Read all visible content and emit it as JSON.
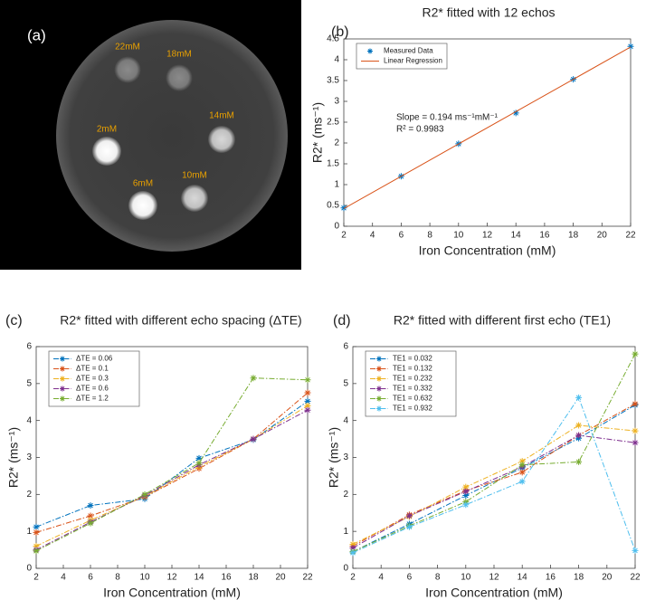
{
  "image_panel": {
    "panel_label": "(a)",
    "spot_labels": [
      "22mM",
      "18mM",
      "14mM",
      "2mM",
      "6mM",
      "10mM"
    ]
  },
  "chart_data": [
    {
      "type": "line",
      "panel_label": "(b)",
      "title": "R2* fitted with 12 echos",
      "x_label": "Iron Concentration (mM)",
      "y_label": "R2* (ms⁻¹)",
      "annotations": [
        "Slope = 0.194 ms⁻¹mM⁻¹",
        "R² = 0.9983"
      ],
      "x": [
        2,
        6,
        10,
        14,
        18,
        22
      ],
      "series": [
        {
          "name": "Measured Data",
          "color": "#0072bd",
          "mode": "markers",
          "values": [
            0.44,
            1.2,
            1.98,
            2.72,
            3.53,
            4.32
          ]
        },
        {
          "name": "Linear Regression",
          "color": "#d95319",
          "mode": "line",
          "values": [
            0.425,
            1.201,
            1.977,
            2.753,
            3.529,
            4.305
          ]
        }
      ],
      "xlim": [
        2,
        22
      ],
      "xticks": [
        2,
        4,
        6,
        8,
        10,
        12,
        14,
        16,
        18,
        20,
        22
      ],
      "ylim": [
        0,
        4.5
      ],
      "yticks": [
        0,
        0.5,
        1,
        1.5,
        2,
        2.5,
        3,
        3.5,
        4,
        4.5
      ],
      "legend": "upper left"
    },
    {
      "type": "line",
      "panel_label": "(c)",
      "title": "R2* fitted with different echo spacing (ΔTE)",
      "x_label": "Iron Concentration (mM)",
      "y_label": "R2* (ms⁻¹)",
      "x": [
        2,
        6,
        10,
        14,
        18,
        22
      ],
      "series": [
        {
          "name": "ΔTE = 0.06",
          "color": "#0072bd",
          "mode": "dashdot-markers",
          "values": [
            1.12,
            1.7,
            1.88,
            2.98,
            3.48,
            4.52
          ]
        },
        {
          "name": "ΔTE = 0.1",
          "color": "#d95319",
          "mode": "dashdot-markers",
          "values": [
            0.97,
            1.42,
            1.93,
            2.7,
            3.5,
            4.75
          ]
        },
        {
          "name": "ΔTE = 0.3",
          "color": "#edb120",
          "mode": "dashdot-markers",
          "values": [
            0.6,
            1.3,
            1.95,
            2.75,
            3.5,
            4.4
          ]
        },
        {
          "name": "ΔTE = 0.6",
          "color": "#7e2f8e",
          "mode": "dashdot-markers",
          "values": [
            0.5,
            1.25,
            1.97,
            2.8,
            3.5,
            4.28
          ]
        },
        {
          "name": "ΔTE = 1.2",
          "color": "#77ac30",
          "mode": "dashdot-markers",
          "values": [
            0.47,
            1.22,
            2.0,
            2.85,
            5.15,
            5.1
          ]
        }
      ],
      "xlim": [
        2,
        22
      ],
      "xticks": [
        2,
        4,
        6,
        8,
        10,
        12,
        14,
        16,
        18,
        20,
        22
      ],
      "ylim": [
        0,
        6
      ],
      "yticks": [
        0,
        1,
        2,
        3,
        4,
        5,
        6
      ],
      "legend": "upper left"
    },
    {
      "type": "line",
      "panel_label": "(d)",
      "title": "R2* fitted with different first echo (TE1)",
      "x_label": "Iron Concentration (mM)",
      "y_label": "R2* (ms⁻¹)",
      "x": [
        2,
        6,
        10,
        14,
        18,
        22
      ],
      "series": [
        {
          "name": "TE1 = 0.032",
          "color": "#0072bd",
          "mode": "dashdot-markers",
          "values": [
            0.45,
            1.2,
            1.97,
            2.72,
            3.52,
            4.42
          ]
        },
        {
          "name": "TE1 = 0.132",
          "color": "#d95319",
          "mode": "dashdot-markers",
          "values": [
            0.6,
            1.45,
            2.1,
            2.6,
            3.6,
            4.45
          ]
        },
        {
          "name": "TE1 = 0.232",
          "color": "#edb120",
          "mode": "dashdot-markers",
          "values": [
            0.65,
            1.4,
            2.2,
            2.9,
            3.87,
            3.72
          ]
        },
        {
          "name": "TE1 = 0.332",
          "color": "#7e2f8e",
          "mode": "dashdot-markers",
          "values": [
            0.55,
            1.42,
            2.08,
            2.75,
            3.6,
            3.4
          ]
        },
        {
          "name": "TE1 = 0.632",
          "color": "#77ac30",
          "mode": "dashdot-markers",
          "values": [
            0.45,
            1.15,
            1.8,
            2.8,
            2.88,
            5.8
          ]
        },
        {
          "name": "TE1 = 0.932",
          "color": "#4dbeee",
          "mode": "dashdot-markers",
          "values": [
            0.42,
            1.12,
            1.72,
            2.35,
            4.62,
            0.48
          ]
        }
      ],
      "xlim": [
        2,
        22
      ],
      "xticks": [
        2,
        4,
        6,
        8,
        10,
        12,
        14,
        16,
        18,
        20,
        22
      ],
      "ylim": [
        0,
        6
      ],
      "yticks": [
        0,
        1,
        2,
        3,
        4,
        5,
        6
      ],
      "legend": "upper left"
    }
  ]
}
